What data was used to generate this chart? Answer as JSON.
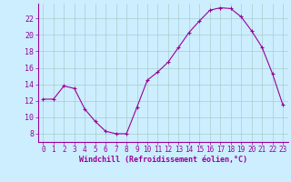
{
  "x": [
    0,
    1,
    2,
    3,
    4,
    5,
    6,
    7,
    8,
    9,
    10,
    11,
    12,
    13,
    14,
    15,
    16,
    17,
    18,
    19,
    20,
    21,
    22,
    23
  ],
  "y": [
    12.2,
    12.2,
    13.8,
    13.5,
    11.0,
    9.5,
    8.3,
    8.0,
    8.0,
    11.2,
    14.5,
    15.5,
    16.7,
    18.5,
    20.3,
    21.7,
    23.0,
    23.3,
    23.2,
    22.2,
    20.5,
    18.5,
    15.3,
    11.5
  ],
  "line_color": "#990099",
  "marker": "+",
  "marker_size": 3,
  "bg_color": "#cceeff",
  "grid_color": "#aacccc",
  "xlabel": "Windchill (Refroidissement éolien,°C)",
  "xlabel_color": "#990099",
  "tick_color": "#990099",
  "spine_color": "#990099",
  "ylim": [
    7,
    23.8
  ],
  "yticks": [
    8,
    10,
    12,
    14,
    16,
    18,
    20,
    22
  ],
  "xlim": [
    -0.5,
    23.5
  ],
  "xticks": [
    0,
    1,
    2,
    3,
    4,
    5,
    6,
    7,
    8,
    9,
    10,
    11,
    12,
    13,
    14,
    15,
    16,
    17,
    18,
    19,
    20,
    21,
    22,
    23
  ],
  "tick_fontsize": 5.5,
  "xlabel_fontsize": 6.0,
  "ytick_fontsize": 6.0
}
